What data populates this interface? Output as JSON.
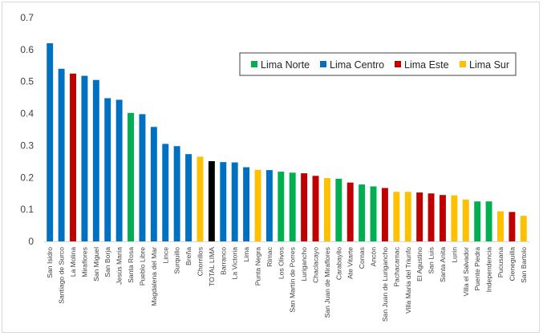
{
  "chart_data": {
    "type": "bar",
    "title": "",
    "xlabel": "",
    "ylabel": "",
    "ylim": [
      0,
      0.7
    ],
    "yticks": [
      "0",
      "0.1",
      "0.2",
      "0.3",
      "0.4",
      "0.5",
      "0.6",
      "0.7"
    ],
    "grid": false,
    "legend_position": "top-right",
    "legend": [
      {
        "name": "Lima Norte",
        "color": "#00b050"
      },
      {
        "name": "Lima Centro",
        "color": "#0070c0"
      },
      {
        "name": "Lima Este",
        "color": "#c00000"
      },
      {
        "name": "Lima Sur",
        "color": "#ffc000"
      }
    ],
    "group_colors": {
      "norte": "#00b050",
      "centro": "#0070c0",
      "este": "#c00000",
      "sur": "#ffc000",
      "total": "#000000"
    },
    "categories": [
      "San Isidro",
      "Santiago de Surco",
      "La Molina",
      "Miraflores",
      "San Miguel",
      "San Borja",
      "Jesús María",
      "Santa Rosa",
      "Pueblo Libre",
      "Magdalena del Mar",
      "Lince",
      "Surquillo",
      "Breña",
      "Chorrillos",
      "TOTAL LIMA",
      "Barranco",
      "La Victoria",
      "Lima",
      "Punta Negra",
      "Rímac",
      "Los Olivos",
      "San Martín de Porres",
      "Lurigancho",
      "Chaclacayo",
      "San Juan de Miraflores",
      "Carabayllo",
      "Ate Vitarte",
      "Comas",
      "Ancón",
      "San Juan de Lurigancho",
      "Pachacamac",
      "Villa María del Triunfo",
      "El Agustino",
      "San Luis",
      "Santa Anita",
      "Lurín",
      "Villa el Salvador",
      "Puente Piedra",
      "Independencia",
      "Pucusana",
      "Cieneguilla",
      "San Bartolo"
    ],
    "values": [
      0.62,
      0.54,
      0.525,
      0.518,
      0.505,
      0.448,
      0.443,
      0.402,
      0.398,
      0.358,
      0.305,
      0.298,
      0.273,
      0.265,
      0.251,
      0.248,
      0.247,
      0.232,
      0.224,
      0.223,
      0.218,
      0.215,
      0.213,
      0.205,
      0.198,
      0.196,
      0.184,
      0.178,
      0.172,
      0.167,
      0.155,
      0.155,
      0.153,
      0.15,
      0.145,
      0.144,
      0.131,
      0.125,
      0.125,
      0.094,
      0.092,
      0.08
    ],
    "groups": [
      "centro",
      "centro",
      "este",
      "centro",
      "centro",
      "centro",
      "centro",
      "norte",
      "centro",
      "centro",
      "centro",
      "centro",
      "centro",
      "sur",
      "total",
      "centro",
      "centro",
      "centro",
      "sur",
      "centro",
      "norte",
      "norte",
      "este",
      "este",
      "sur",
      "norte",
      "este",
      "norte",
      "norte",
      "este",
      "sur",
      "sur",
      "este",
      "este",
      "este",
      "sur",
      "sur",
      "norte",
      "norte",
      "sur",
      "este",
      "sur"
    ]
  }
}
